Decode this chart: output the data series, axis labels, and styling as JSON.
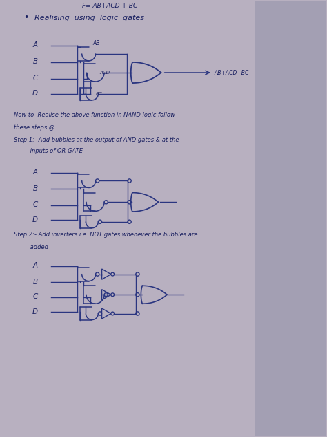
{
  "bg_color": "#b8b0c0",
  "paper_color": "#e8e4ec",
  "paper_right_color": "#c8c4d0",
  "line_color": "#2a3580",
  "text_color": "#1a2060",
  "title_line": "F= AB+ACD + BC",
  "subtitle": "Realising  using  logic  gates",
  "bullet": "•",
  "step1_title": "Step 1:- Add bubbles at the output of AND gates & at the",
  "step1_sub": "         inputs of OR GATE",
  "step2_title": "Step 2:- Add inverters i.e  NOT gates whenever the bubbles are",
  "step2_sub": "         added",
  "now_text": "Now to  Realise the above function in NAND logic follow",
  "these_text": "these steps @",
  "figsize": [
    4.74,
    6.32
  ],
  "dpi": 100
}
